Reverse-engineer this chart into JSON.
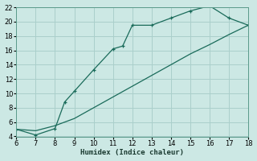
{
  "xlabel": "Humidex (Indice chaleur)",
  "bg_color": "#cce8e4",
  "grid_color": "#aacfcb",
  "line_color": "#1a6b5a",
  "line1_x": [
    6,
    7,
    8,
    8.5,
    9,
    10,
    11,
    11.5,
    12,
    13,
    14,
    15,
    16,
    17,
    18
  ],
  "line1_y": [
    5.0,
    4.2,
    5.1,
    8.8,
    10.3,
    13.3,
    16.2,
    16.6,
    19.5,
    19.5,
    20.5,
    21.5,
    22.2,
    20.5,
    19.5
  ],
  "line2_x": [
    6,
    7,
    8,
    9,
    10,
    11,
    12,
    13,
    14,
    15,
    16,
    17,
    18
  ],
  "line2_y": [
    5.0,
    4.8,
    5.5,
    6.5,
    8.0,
    9.5,
    11.0,
    12.5,
    14.0,
    15.5,
    16.8,
    18.2,
    19.5
  ],
  "xmin": 6,
  "xmax": 18,
  "ymin": 4,
  "ymax": 22,
  "xticks": [
    6,
    7,
    8,
    9,
    10,
    11,
    12,
    13,
    14,
    15,
    16,
    17,
    18
  ],
  "yticks": [
    4,
    6,
    8,
    10,
    12,
    14,
    16,
    18,
    20,
    22
  ]
}
